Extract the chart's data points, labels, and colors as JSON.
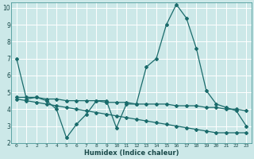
{
  "xlabel": "Humidex (Indice chaleur)",
  "bg_color": "#cce8e8",
  "grid_color": "#ffffff",
  "line_color": "#1a6b6b",
  "xlim": [
    -0.5,
    23.5
  ],
  "ylim": [
    2,
    10.3
  ],
  "xticks": [
    0,
    1,
    2,
    3,
    4,
    5,
    6,
    7,
    8,
    9,
    10,
    11,
    12,
    13,
    14,
    15,
    16,
    17,
    18,
    19,
    20,
    21,
    22,
    23
  ],
  "yticks": [
    2,
    3,
    4,
    5,
    6,
    7,
    8,
    9,
    10
  ],
  "line1_x": [
    0,
    1,
    2,
    3,
    4,
    5,
    6,
    7,
    8,
    9,
    10,
    11,
    12,
    13,
    14,
    15,
    16,
    17,
    18,
    19,
    20,
    21,
    22,
    23
  ],
  "line1_y": [
    7.0,
    4.6,
    4.7,
    4.5,
    4.0,
    2.3,
    3.1,
    3.7,
    4.5,
    4.5,
    2.9,
    4.3,
    4.3,
    6.5,
    7.0,
    9.0,
    10.2,
    9.4,
    7.6,
    5.1,
    4.3,
    4.1,
    3.9,
    3.0
  ],
  "line2_x": [
    0,
    1,
    2,
    3,
    4,
    5,
    6,
    7,
    8,
    9,
    10,
    11,
    12,
    13,
    14,
    15,
    16,
    17,
    18,
    19,
    20,
    21,
    22,
    23
  ],
  "line2_y": [
    4.7,
    4.7,
    4.7,
    4.6,
    4.6,
    4.5,
    4.5,
    4.5,
    4.5,
    4.4,
    4.4,
    4.4,
    4.3,
    4.3,
    4.3,
    4.3,
    4.2,
    4.2,
    4.2,
    4.1,
    4.1,
    4.0,
    4.0,
    3.9
  ],
  "line3_x": [
    0,
    1,
    2,
    3,
    4,
    5,
    6,
    7,
    8,
    9,
    10,
    11,
    12,
    13,
    14,
    15,
    16,
    17,
    18,
    19,
    20,
    21,
    22,
    23
  ],
  "line3_y": [
    4.6,
    4.5,
    4.4,
    4.3,
    4.2,
    4.1,
    4.0,
    3.9,
    3.8,
    3.7,
    3.6,
    3.5,
    3.4,
    3.3,
    3.2,
    3.1,
    3.0,
    2.9,
    2.8,
    2.7,
    2.6,
    2.6,
    2.6,
    2.6
  ]
}
